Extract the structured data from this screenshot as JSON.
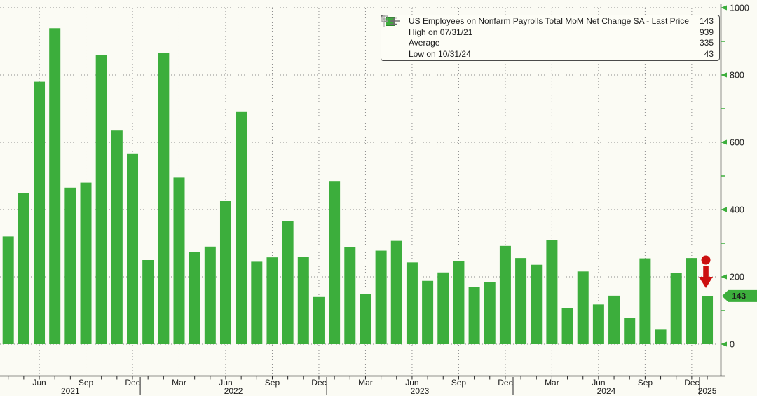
{
  "colors": {
    "bar_green": "#3cae3c",
    "tick_green": "#3cae3c",
    "axis_line": "#262626",
    "grid_gray": "#8c8c8c",
    "text_dark": "#1c1c1c",
    "annotation_red": "#cc1010",
    "tag_text": "#0b350e",
    "background": "#fbfbf4",
    "legend_border": "#4a4a4a"
  },
  "legend": {
    "rows": [
      {
        "icon": "series-swatch-icon",
        "label": "US Employees on Nonfarm Payrolls Total MoM Net Change SA - Last Price",
        "value": "143"
      },
      {
        "icon": "high-marker-icon",
        "label": "High on 07/31/21",
        "value": "939"
      },
      {
        "icon": "average-marker-icon",
        "label": "Average",
        "value": "335"
      },
      {
        "icon": "low-marker-icon",
        "label": "Low on 10/31/24",
        "value": "43"
      }
    ]
  },
  "chart_data": {
    "type": "bar",
    "title": "US Employees on Nonfarm Payrolls Total MoM Net Change SA",
    "ylabel": "",
    "xlabel": "",
    "ylim": [
      0,
      1000
    ],
    "yticks": [
      0,
      200,
      400,
      600,
      800,
      1000
    ],
    "y_minor_step": 100,
    "grid": "dotted",
    "legend_position": "top-right",
    "bar_color": "#3cae3c",
    "last_price": 143,
    "high": {
      "label": "High on 07/31/21",
      "value": 939
    },
    "average": {
      "label": "Average",
      "value": 335
    },
    "low": {
      "label": "Low on 10/31/24",
      "value": 43
    },
    "x_quarter_tick_months": [
      "Jun",
      "Sep",
      "Dec",
      "Mar"
    ],
    "year_labels": [
      "2021",
      "2022",
      "2023",
      "2024",
      "2025"
    ],
    "annotation": {
      "type": "red-down-arrow",
      "at": "Jan 2025"
    },
    "x": [
      "Apr 2021",
      "May 2021",
      "Jun 2021",
      "Jul 2021",
      "Aug 2021",
      "Sep 2021",
      "Oct 2021",
      "Nov 2021",
      "Dec 2021",
      "Jan 2022",
      "Feb 2022",
      "Mar 2022",
      "Apr 2022",
      "May 2022",
      "Jun 2022",
      "Jul 2022",
      "Aug 2022",
      "Sep 2022",
      "Oct 2022",
      "Nov 2022",
      "Dec 2022",
      "Jan 2023",
      "Feb 2023",
      "Mar 2023",
      "Apr 2023",
      "May 2023",
      "Jun 2023",
      "Jul 2023",
      "Aug 2023",
      "Sep 2023",
      "Oct 2023",
      "Nov 2023",
      "Dec 2023",
      "Jan 2024",
      "Feb 2024",
      "Mar 2024",
      "Apr 2024",
      "May 2024",
      "Jun 2024",
      "Jul 2024",
      "Aug 2024",
      "Sep 2024",
      "Oct 2024",
      "Nov 2024",
      "Dec 2024",
      "Jan 2025"
    ],
    "values": [
      320,
      450,
      780,
      939,
      465,
      480,
      860,
      635,
      565,
      250,
      865,
      495,
      275,
      290,
      425,
      690,
      245,
      258,
      365,
      260,
      140,
      485,
      288,
      150,
      278,
      307,
      243,
      188,
      213,
      247,
      170,
      185,
      292,
      256,
      236,
      310,
      108,
      216,
      118,
      144,
      78,
      255,
      43,
      212,
      256,
      143
    ]
  }
}
